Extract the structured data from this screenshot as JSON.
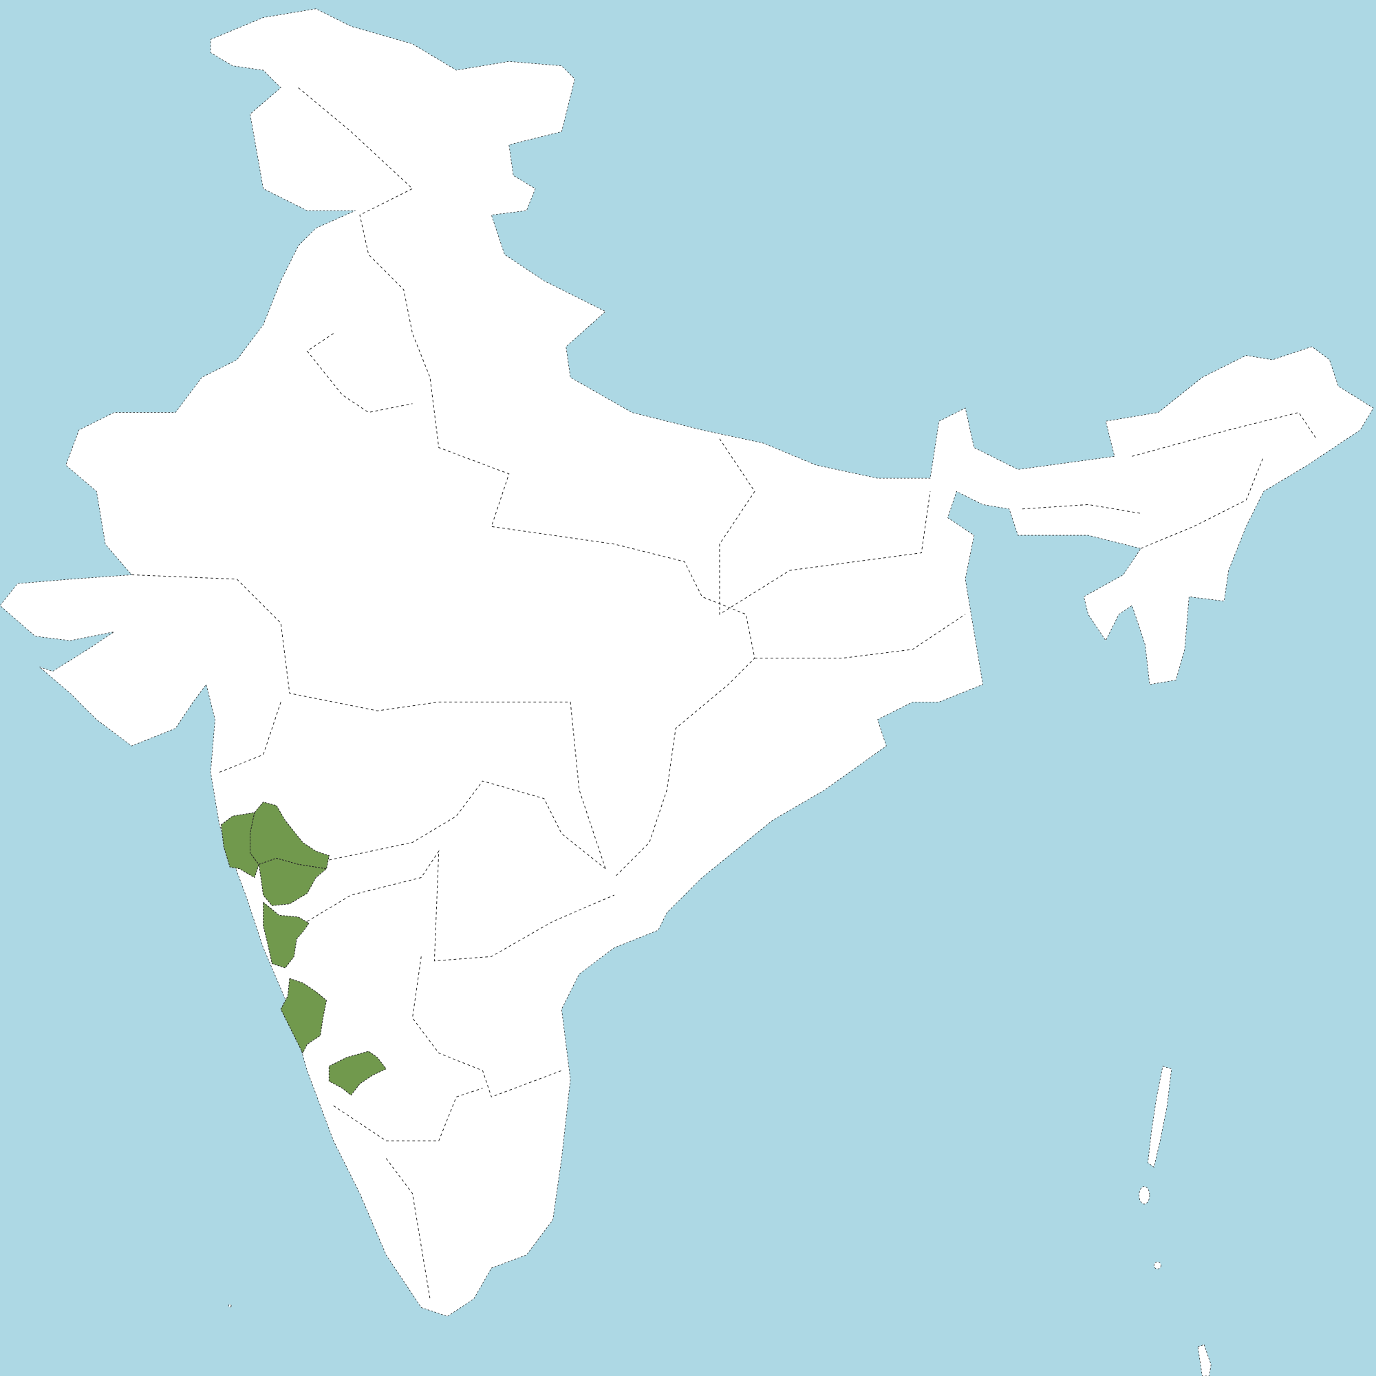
{
  "map": {
    "colors": {
      "water": "#add8e4",
      "land": "#ffffff",
      "highlight": "#71994d",
      "border": "#222222"
    },
    "highlighted_region_count": 6
  }
}
